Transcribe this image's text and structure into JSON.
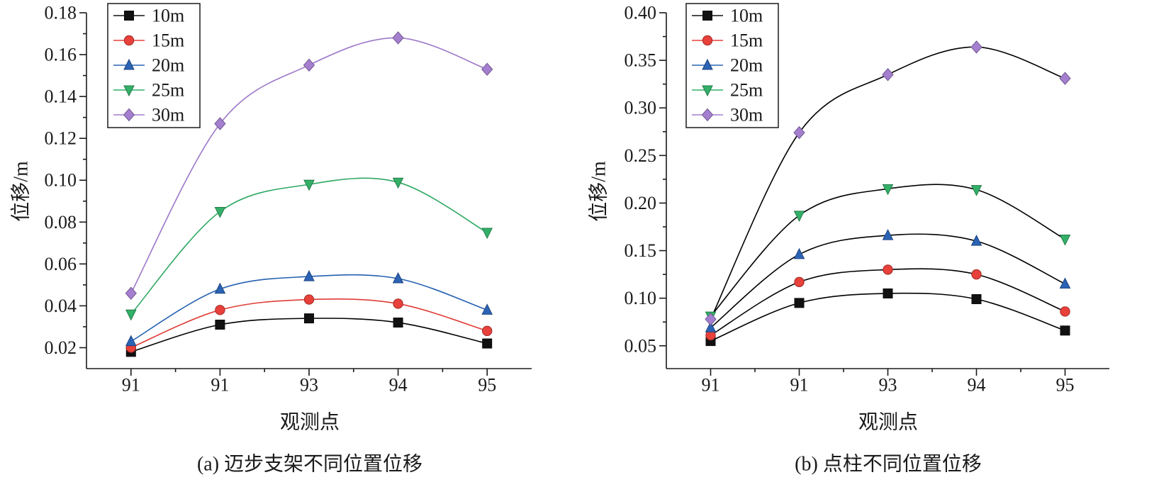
{
  "chart_data": [
    {
      "type": "line",
      "caption": "(a) 迈步支架不同位置位移",
      "xlabel": "观测点",
      "ylabel": "位移/m",
      "categories": [
        "91",
        "91",
        "93",
        "94",
        "95"
      ],
      "yticks": [
        "0.02",
        "0.04",
        "0.06",
        "0.08",
        "0.10",
        "0.12",
        "0.14",
        "0.16",
        "0.18"
      ],
      "ylim": [
        0.01,
        0.18
      ],
      "grid": false,
      "smooth": true,
      "legend_position": "top-left",
      "series": [
        {
          "name": "10m",
          "marker": "square",
          "marker_color": "#111111",
          "line_color": "#000000",
          "values": [
            0.018,
            0.031,
            0.034,
            0.032,
            0.022
          ]
        },
        {
          "name": "15m",
          "marker": "circle",
          "marker_color": "#e8403a",
          "line_color": "#e03b35",
          "values": [
            0.02,
            0.038,
            0.043,
            0.041,
            0.028
          ]
        },
        {
          "name": "20m",
          "marker": "triangle-up",
          "marker_color": "#2b63b5",
          "line_color": "#2460b0",
          "values": [
            0.023,
            0.048,
            0.054,
            0.053,
            0.038
          ]
        },
        {
          "name": "25m",
          "marker": "triangle-down",
          "marker_color": "#33b068",
          "line_color": "#2ea862",
          "values": [
            0.036,
            0.085,
            0.098,
            0.099,
            0.075
          ]
        },
        {
          "name": "30m",
          "marker": "diamond",
          "marker_color": "#a47fcf",
          "line_color": "#9d78c9",
          "values": [
            0.046,
            0.127,
            0.155,
            0.168,
            0.153
          ]
        }
      ]
    },
    {
      "type": "line",
      "caption": "(b) 点柱不同位置位移",
      "xlabel": "观测点",
      "ylabel": "位移/m",
      "categories": [
        "91",
        "91",
        "93",
        "94",
        "95"
      ],
      "yticks": [
        "0.05",
        "0.10",
        "0.15",
        "0.20",
        "0.25",
        "0.30",
        "0.35",
        "0.40"
      ],
      "ylim": [
        0.026,
        0.4
      ],
      "grid": false,
      "smooth": true,
      "legend_position": "top-left",
      "series": [
        {
          "name": "10m",
          "marker": "square",
          "marker_color": "#111111",
          "line_color": "#000000",
          "values": [
            0.055,
            0.095,
            0.105,
            0.099,
            0.066
          ]
        },
        {
          "name": "15m",
          "marker": "circle",
          "marker_color": "#e8403a",
          "line_color": "#000000",
          "values": [
            0.061,
            0.117,
            0.13,
            0.125,
            0.086
          ]
        },
        {
          "name": "20m",
          "marker": "triangle-up",
          "marker_color": "#2b63b5",
          "line_color": "#000000",
          "values": [
            0.069,
            0.146,
            0.166,
            0.16,
            0.115
          ]
        },
        {
          "name": "25m",
          "marker": "triangle-down",
          "marker_color": "#33b068",
          "line_color": "#000000",
          "values": [
            0.081,
            0.187,
            0.215,
            0.214,
            0.162
          ]
        },
        {
          "name": "30m",
          "marker": "diamond",
          "marker_color": "#a47fcf",
          "line_color": "#000000",
          "values": [
            0.078,
            0.274,
            0.335,
            0.364,
            0.331
          ]
        }
      ]
    }
  ]
}
